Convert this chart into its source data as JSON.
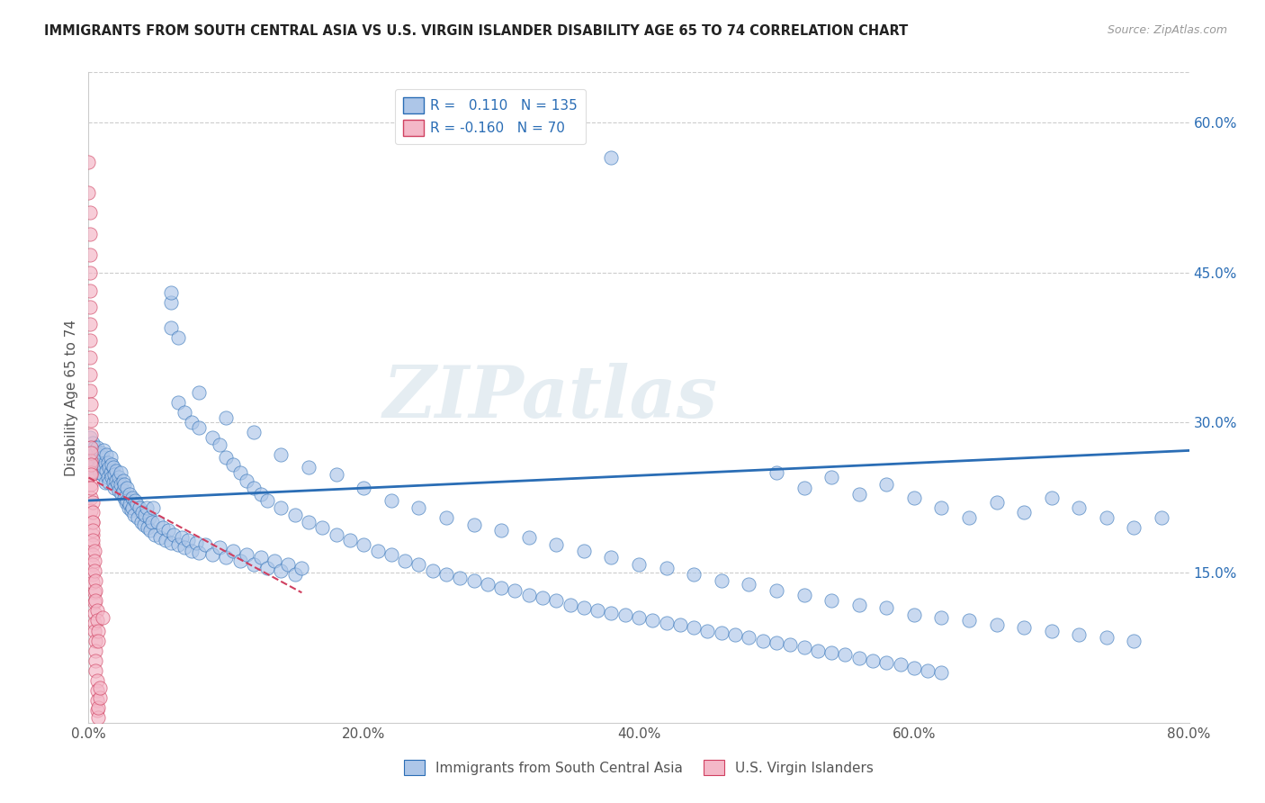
{
  "title": "IMMIGRANTS FROM SOUTH CENTRAL ASIA VS U.S. VIRGIN ISLANDER DISABILITY AGE 65 TO 74 CORRELATION CHART",
  "source": "Source: ZipAtlas.com",
  "xlabel_label": "Immigrants from South Central Asia",
  "ylabel_label": "Disability Age 65 to 74",
  "xlim": [
    0.0,
    0.8
  ],
  "ylim": [
    0.0,
    0.65
  ],
  "xticks": [
    0.0,
    0.2,
    0.4,
    0.6,
    0.8
  ],
  "yticks": [
    0.15,
    0.3,
    0.45,
    0.6
  ],
  "ytick_labels": [
    "15.0%",
    "30.0%",
    "45.0%",
    "60.0%"
  ],
  "xtick_labels": [
    "0.0%",
    "20.0%",
    "40.0%",
    "60.0%",
    "80.0%"
  ],
  "blue_R": 0.11,
  "blue_N": 135,
  "pink_R": -0.16,
  "pink_N": 70,
  "blue_color": "#adc6e8",
  "pink_color": "#f4b8c8",
  "blue_line_color": "#2a6db5",
  "pink_line_color": "#d04060",
  "watermark": "ZIPatlas",
  "blue_line_x0": 0.0,
  "blue_line_y0": 0.222,
  "blue_line_x1": 0.8,
  "blue_line_y1": 0.272,
  "pink_line_x0": 0.0,
  "pink_line_y0": 0.245,
  "pink_line_x1": 0.155,
  "pink_line_y1": 0.13,
  "blue_scatter": [
    [
      0.001,
      0.27
    ],
    [
      0.001,
      0.285
    ],
    [
      0.002,
      0.265
    ],
    [
      0.002,
      0.275
    ],
    [
      0.002,
      0.255
    ],
    [
      0.003,
      0.28
    ],
    [
      0.003,
      0.26
    ],
    [
      0.003,
      0.27
    ],
    [
      0.004,
      0.265
    ],
    [
      0.004,
      0.255
    ],
    [
      0.004,
      0.275
    ],
    [
      0.005,
      0.26
    ],
    [
      0.005,
      0.27
    ],
    [
      0.005,
      0.25
    ],
    [
      0.006,
      0.265
    ],
    [
      0.006,
      0.275
    ],
    [
      0.007,
      0.255
    ],
    [
      0.007,
      0.268
    ],
    [
      0.008,
      0.26
    ],
    [
      0.008,
      0.25
    ],
    [
      0.009,
      0.27
    ],
    [
      0.009,
      0.258
    ],
    [
      0.01,
      0.265
    ],
    [
      0.01,
      0.248
    ],
    [
      0.011,
      0.255
    ],
    [
      0.011,
      0.272
    ],
    [
      0.012,
      0.26
    ],
    [
      0.012,
      0.24
    ],
    [
      0.013,
      0.268
    ],
    [
      0.013,
      0.252
    ],
    [
      0.014,
      0.245
    ],
    [
      0.014,
      0.26
    ],
    [
      0.015,
      0.255
    ],
    [
      0.015,
      0.24
    ],
    [
      0.016,
      0.265
    ],
    [
      0.016,
      0.25
    ],
    [
      0.017,
      0.245
    ],
    [
      0.017,
      0.258
    ],
    [
      0.018,
      0.24
    ],
    [
      0.018,
      0.255
    ],
    [
      0.019,
      0.248
    ],
    [
      0.019,
      0.235
    ],
    [
      0.02,
      0.252
    ],
    [
      0.02,
      0.242
    ],
    [
      0.021,
      0.238
    ],
    [
      0.022,
      0.245
    ],
    [
      0.022,
      0.232
    ],
    [
      0.023,
      0.25
    ],
    [
      0.023,
      0.238
    ],
    [
      0.024,
      0.228
    ],
    [
      0.025,
      0.242
    ],
    [
      0.025,
      0.232
    ],
    [
      0.026,
      0.225
    ],
    [
      0.026,
      0.238
    ],
    [
      0.027,
      0.22
    ],
    [
      0.028,
      0.235
    ],
    [
      0.028,
      0.222
    ],
    [
      0.029,
      0.215
    ],
    [
      0.03,
      0.228
    ],
    [
      0.03,
      0.218
    ],
    [
      0.031,
      0.212
    ],
    [
      0.032,
      0.225
    ],
    [
      0.032,
      0.215
    ],
    [
      0.033,
      0.208
    ],
    [
      0.034,
      0.222
    ],
    [
      0.035,
      0.218
    ],
    [
      0.036,
      0.205
    ],
    [
      0.037,
      0.215
    ],
    [
      0.038,
      0.2
    ],
    [
      0.039,
      0.21
    ],
    [
      0.04,
      0.198
    ],
    [
      0.041,
      0.208
    ],
    [
      0.042,
      0.215
    ],
    [
      0.043,
      0.195
    ],
    [
      0.044,
      0.205
    ],
    [
      0.045,
      0.192
    ],
    [
      0.046,
      0.2
    ],
    [
      0.047,
      0.215
    ],
    [
      0.048,
      0.188
    ],
    [
      0.05,
      0.2
    ],
    [
      0.052,
      0.185
    ],
    [
      0.054,
      0.195
    ],
    [
      0.056,
      0.182
    ],
    [
      0.058,
      0.192
    ],
    [
      0.06,
      0.18
    ],
    [
      0.062,
      0.188
    ],
    [
      0.065,
      0.178
    ],
    [
      0.068,
      0.185
    ],
    [
      0.07,
      0.175
    ],
    [
      0.072,
      0.182
    ],
    [
      0.075,
      0.172
    ],
    [
      0.078,
      0.18
    ],
    [
      0.08,
      0.17
    ],
    [
      0.085,
      0.178
    ],
    [
      0.09,
      0.168
    ],
    [
      0.095,
      0.175
    ],
    [
      0.1,
      0.165
    ],
    [
      0.105,
      0.172
    ],
    [
      0.11,
      0.162
    ],
    [
      0.115,
      0.168
    ],
    [
      0.12,
      0.158
    ],
    [
      0.125,
      0.165
    ],
    [
      0.13,
      0.155
    ],
    [
      0.135,
      0.162
    ],
    [
      0.14,
      0.152
    ],
    [
      0.145,
      0.158
    ],
    [
      0.15,
      0.148
    ],
    [
      0.155,
      0.155
    ],
    [
      0.06,
      0.395
    ],
    [
      0.065,
      0.385
    ],
    [
      0.065,
      0.32
    ],
    [
      0.07,
      0.31
    ],
    [
      0.075,
      0.3
    ],
    [
      0.08,
      0.295
    ],
    [
      0.09,
      0.285
    ],
    [
      0.095,
      0.278
    ],
    [
      0.1,
      0.265
    ],
    [
      0.105,
      0.258
    ],
    [
      0.11,
      0.25
    ],
    [
      0.115,
      0.242
    ],
    [
      0.12,
      0.235
    ],
    [
      0.125,
      0.228
    ],
    [
      0.13,
      0.222
    ],
    [
      0.14,
      0.215
    ],
    [
      0.15,
      0.208
    ],
    [
      0.16,
      0.2
    ],
    [
      0.17,
      0.195
    ],
    [
      0.18,
      0.188
    ],
    [
      0.19,
      0.182
    ],
    [
      0.2,
      0.178
    ],
    [
      0.21,
      0.172
    ],
    [
      0.22,
      0.168
    ],
    [
      0.23,
      0.162
    ],
    [
      0.24,
      0.158
    ],
    [
      0.25,
      0.152
    ],
    [
      0.26,
      0.148
    ],
    [
      0.27,
      0.145
    ],
    [
      0.28,
      0.142
    ],
    [
      0.29,
      0.138
    ],
    [
      0.3,
      0.135
    ],
    [
      0.31,
      0.132
    ],
    [
      0.32,
      0.128
    ],
    [
      0.33,
      0.125
    ],
    [
      0.34,
      0.122
    ],
    [
      0.35,
      0.118
    ],
    [
      0.36,
      0.115
    ],
    [
      0.37,
      0.112
    ],
    [
      0.38,
      0.11
    ],
    [
      0.39,
      0.108
    ],
    [
      0.4,
      0.105
    ],
    [
      0.41,
      0.102
    ],
    [
      0.42,
      0.1
    ],
    [
      0.43,
      0.098
    ],
    [
      0.44,
      0.095
    ],
    [
      0.45,
      0.092
    ],
    [
      0.46,
      0.09
    ],
    [
      0.47,
      0.088
    ],
    [
      0.48,
      0.085
    ],
    [
      0.49,
      0.082
    ],
    [
      0.5,
      0.08
    ],
    [
      0.51,
      0.078
    ],
    [
      0.52,
      0.075
    ],
    [
      0.53,
      0.072
    ],
    [
      0.54,
      0.07
    ],
    [
      0.55,
      0.068
    ],
    [
      0.56,
      0.065
    ],
    [
      0.57,
      0.062
    ],
    [
      0.58,
      0.06
    ],
    [
      0.59,
      0.058
    ],
    [
      0.6,
      0.055
    ],
    [
      0.61,
      0.052
    ],
    [
      0.62,
      0.05
    ],
    [
      0.06,
      0.42
    ],
    [
      0.08,
      0.33
    ],
    [
      0.1,
      0.305
    ],
    [
      0.12,
      0.29
    ],
    [
      0.14,
      0.268
    ],
    [
      0.16,
      0.255
    ],
    [
      0.18,
      0.248
    ],
    [
      0.2,
      0.235
    ],
    [
      0.22,
      0.222
    ],
    [
      0.24,
      0.215
    ],
    [
      0.26,
      0.205
    ],
    [
      0.28,
      0.198
    ],
    [
      0.3,
      0.192
    ],
    [
      0.32,
      0.185
    ],
    [
      0.34,
      0.178
    ],
    [
      0.36,
      0.172
    ],
    [
      0.38,
      0.165
    ],
    [
      0.4,
      0.158
    ],
    [
      0.42,
      0.155
    ],
    [
      0.44,
      0.148
    ],
    [
      0.46,
      0.142
    ],
    [
      0.48,
      0.138
    ],
    [
      0.5,
      0.132
    ],
    [
      0.52,
      0.128
    ],
    [
      0.54,
      0.122
    ],
    [
      0.56,
      0.118
    ],
    [
      0.58,
      0.115
    ],
    [
      0.6,
      0.108
    ],
    [
      0.62,
      0.105
    ],
    [
      0.64,
      0.102
    ],
    [
      0.66,
      0.098
    ],
    [
      0.68,
      0.095
    ],
    [
      0.7,
      0.092
    ],
    [
      0.72,
      0.088
    ],
    [
      0.74,
      0.085
    ],
    [
      0.76,
      0.082
    ],
    [
      0.5,
      0.25
    ],
    [
      0.52,
      0.235
    ],
    [
      0.54,
      0.245
    ],
    [
      0.56,
      0.228
    ],
    [
      0.58,
      0.238
    ],
    [
      0.6,
      0.225
    ],
    [
      0.62,
      0.215
    ],
    [
      0.64,
      0.205
    ],
    [
      0.66,
      0.22
    ],
    [
      0.68,
      0.21
    ],
    [
      0.7,
      0.225
    ],
    [
      0.72,
      0.215
    ],
    [
      0.74,
      0.205
    ],
    [
      0.76,
      0.195
    ],
    [
      0.78,
      0.205
    ],
    [
      0.38,
      0.565
    ],
    [
      0.06,
      0.43
    ]
  ],
  "pink_scatter": [
    [
      0.0,
      0.56
    ],
    [
      0.0,
      0.53
    ],
    [
      0.001,
      0.51
    ],
    [
      0.001,
      0.488
    ],
    [
      0.001,
      0.468
    ],
    [
      0.001,
      0.45
    ],
    [
      0.001,
      0.432
    ],
    [
      0.001,
      0.415
    ],
    [
      0.001,
      0.398
    ],
    [
      0.001,
      0.382
    ],
    [
      0.001,
      0.365
    ],
    [
      0.001,
      0.348
    ],
    [
      0.001,
      0.332
    ],
    [
      0.002,
      0.318
    ],
    [
      0.002,
      0.302
    ],
    [
      0.002,
      0.288
    ],
    [
      0.002,
      0.275
    ],
    [
      0.002,
      0.262
    ],
    [
      0.002,
      0.25
    ],
    [
      0.002,
      0.238
    ],
    [
      0.002,
      0.225
    ],
    [
      0.002,
      0.212
    ],
    [
      0.003,
      0.2
    ],
    [
      0.003,
      0.188
    ],
    [
      0.003,
      0.178
    ],
    [
      0.003,
      0.168
    ],
    [
      0.003,
      0.158
    ],
    [
      0.003,
      0.148
    ],
    [
      0.003,
      0.14
    ],
    [
      0.004,
      0.13
    ],
    [
      0.004,
      0.12
    ],
    [
      0.004,
      0.11
    ],
    [
      0.004,
      0.1
    ],
    [
      0.004,
      0.092
    ],
    [
      0.005,
      0.082
    ],
    [
      0.005,
      0.072
    ],
    [
      0.005,
      0.062
    ],
    [
      0.005,
      0.052
    ],
    [
      0.006,
      0.042
    ],
    [
      0.006,
      0.032
    ],
    [
      0.006,
      0.022
    ],
    [
      0.006,
      0.012
    ],
    [
      0.007,
      0.005
    ],
    [
      0.007,
      0.015
    ],
    [
      0.008,
      0.025
    ],
    [
      0.008,
      0.035
    ],
    [
      0.002,
      0.27
    ],
    [
      0.002,
      0.258
    ],
    [
      0.002,
      0.248
    ],
    [
      0.002,
      0.235
    ],
    [
      0.003,
      0.22
    ],
    [
      0.003,
      0.21
    ],
    [
      0.003,
      0.2
    ],
    [
      0.003,
      0.192
    ],
    [
      0.003,
      0.182
    ],
    [
      0.004,
      0.172
    ],
    [
      0.004,
      0.162
    ],
    [
      0.004,
      0.152
    ],
    [
      0.005,
      0.142
    ],
    [
      0.005,
      0.132
    ],
    [
      0.005,
      0.122
    ],
    [
      0.006,
      0.112
    ],
    [
      0.006,
      0.102
    ],
    [
      0.007,
      0.092
    ],
    [
      0.007,
      0.082
    ],
    [
      0.01,
      0.105
    ]
  ]
}
